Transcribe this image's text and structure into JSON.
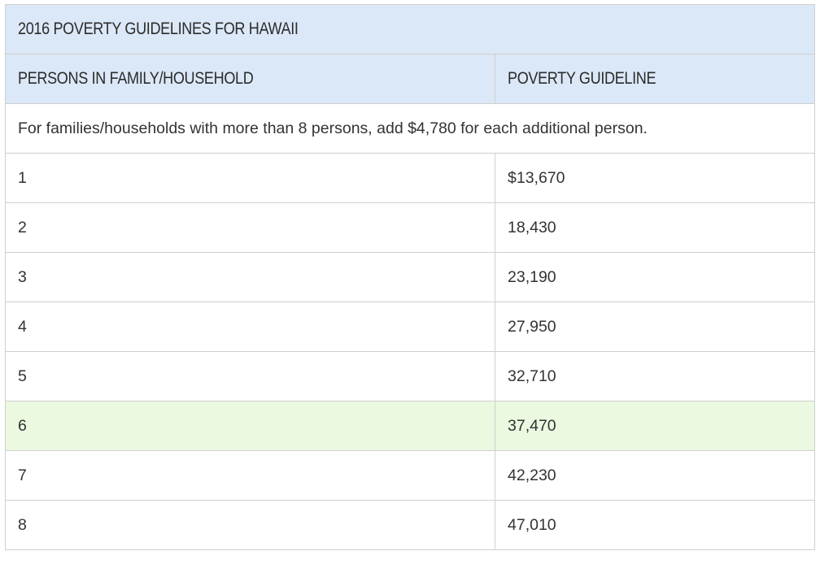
{
  "table": {
    "title": "2016 POVERTY GUIDELINES FOR HAWAII",
    "headers": {
      "persons": "PERSONS IN FAMILY/HOUSEHOLD",
      "guideline": "POVERTY GUIDELINE"
    },
    "note": "For families/households with more than 8 persons, add $4,780 for each additional person.",
    "rows": [
      {
        "persons": "1",
        "guideline": "$13,670"
      },
      {
        "persons": "2",
        "guideline": "18,430"
      },
      {
        "persons": "3",
        "guideline": "23,190"
      },
      {
        "persons": "4",
        "guideline": "27,950"
      },
      {
        "persons": "5",
        "guideline": "32,710"
      },
      {
        "persons": "6",
        "guideline": "37,470"
      },
      {
        "persons": "7",
        "guideline": "42,230"
      },
      {
        "persons": "8",
        "guideline": "47,010"
      }
    ],
    "highlight_row_index": 5,
    "colors": {
      "header_bg": "#dbe8f7",
      "highlight_bg": "#eaf9e0",
      "border": "#cfcfcf"
    }
  }
}
